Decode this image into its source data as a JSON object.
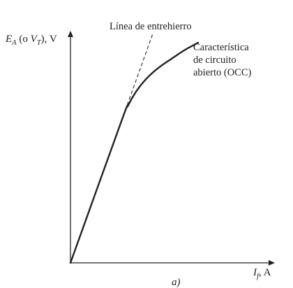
{
  "chart_data": {
    "type": "line",
    "title": "",
    "panel_label": "a)",
    "x_axis": {
      "label_main": "I",
      "label_sub": "f",
      "label_unit": ", A",
      "range": [
        0,
        1
      ],
      "ticks": []
    },
    "y_axis": {
      "label_main": "E",
      "label_sub": "A",
      "label_mid": " (o ",
      "label_main2": "V",
      "label_sub2": "T",
      "label_unit": "), V",
      "range": [
        0,
        1
      ],
      "ticks": []
    },
    "grid": false,
    "annotations": {
      "air_gap_line": "Línea de entrehierro",
      "occ_line1": "Característica",
      "occ_line2": "de circuito",
      "occ_line3": "abierto (OCC)"
    },
    "series": [
      {
        "style": "solid",
        "x": [
          0,
          0.256,
          0.29,
          0.33,
          0.38,
          0.44,
          0.51,
          0.58,
          0.644
        ],
        "y": [
          0,
          0.615,
          0.685,
          0.745,
          0.8,
          0.848,
          0.89,
          0.93,
          0.96
        ]
      },
      {
        "style": "dashed",
        "x": [
          0.256,
          0.416
        ],
        "y": [
          0.615,
          1.0
        ]
      }
    ],
    "colors": {
      "line": "#222222",
      "axis": "#222222"
    }
  }
}
